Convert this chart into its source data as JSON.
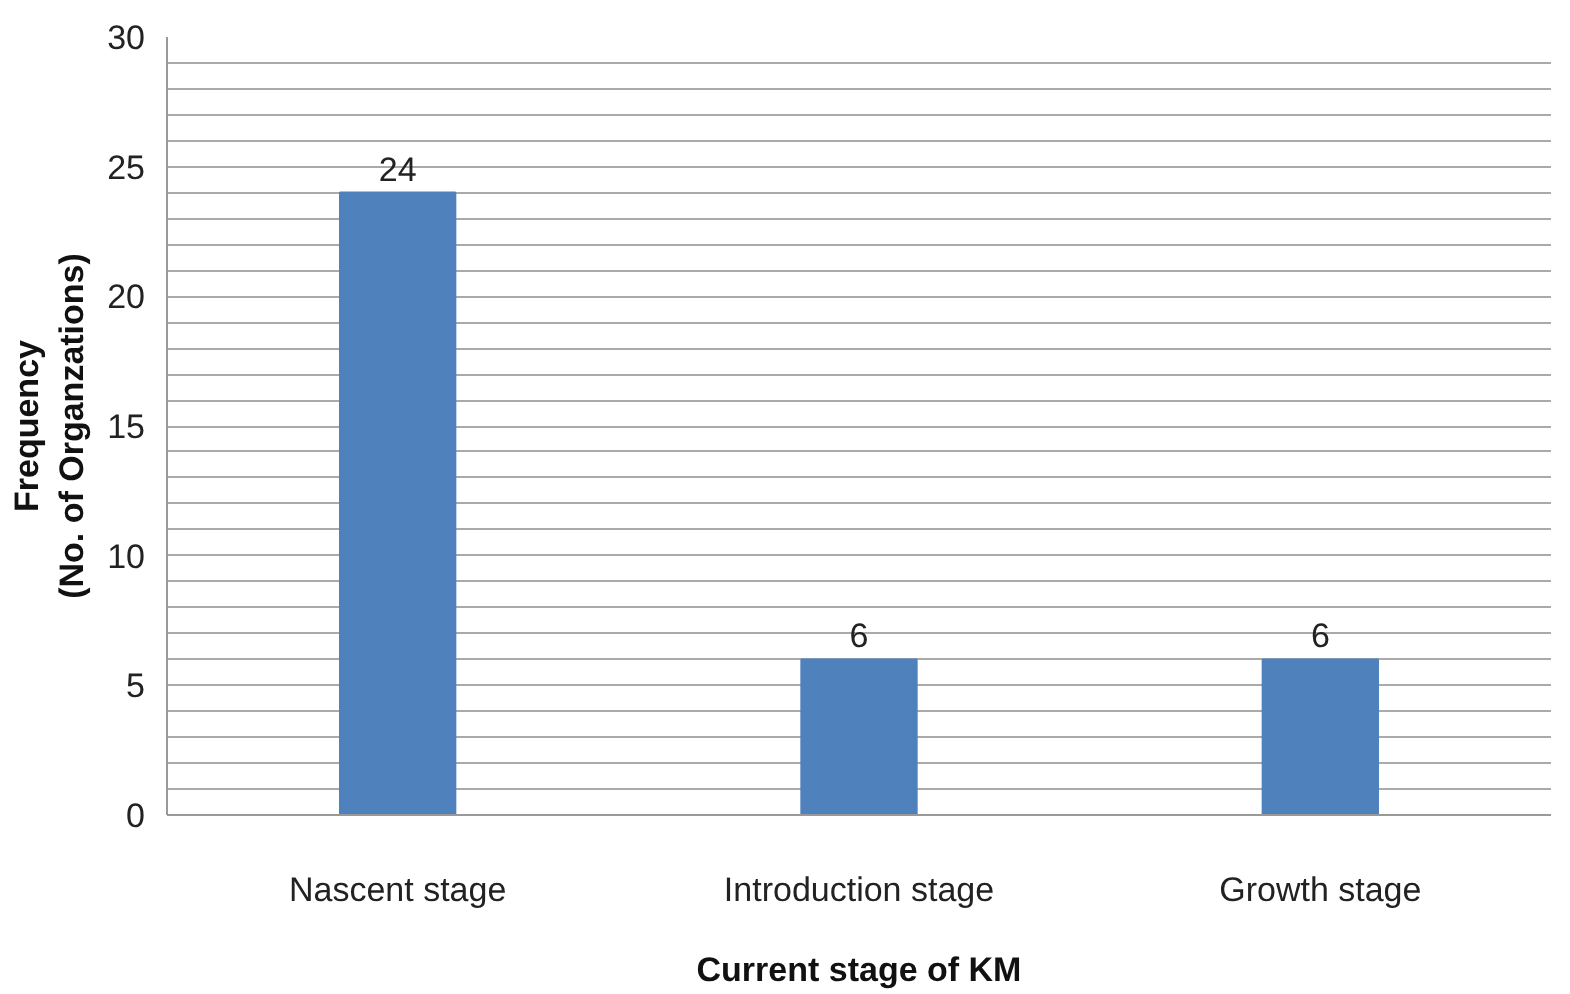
{
  "chart_data": {
    "type": "bar",
    "xlabel": "Current stage of KM",
    "ylabel": "Frequency\n(No. of Organzations)",
    "categories": [
      "Nascent stage",
      "Introduction stage",
      "Growth stage"
    ],
    "values": [
      24,
      6,
      6
    ],
    "color": "#4f81bd",
    "data_labels": true,
    "grid": "y",
    "ylim": [
      0,
      30
    ],
    "yticks": [
      0,
      {
        "value": 1,
        "label": null
      },
      {
        "value": 2,
        "label": null
      },
      {
        "value": 3,
        "label": null
      },
      {
        "value": 4,
        "label": null
      },
      5,
      {
        "value": 6,
        "label": null
      },
      {
        "value": 7,
        "label": null
      },
      {
        "value": 8,
        "label": null
      },
      {
        "value": 9,
        "label": null
      },
      10,
      {
        "value": 11,
        "label": null
      },
      {
        "value": 12,
        "label": null
      },
      {
        "value": 13,
        "label": null
      },
      {
        "value": 14,
        "label": null
      },
      15,
      {
        "value": 16,
        "label": null
      },
      {
        "value": 17,
        "label": null
      },
      {
        "value": 18,
        "label": null
      },
      {
        "value": 19,
        "label": null
      },
      20,
      {
        "value": 21,
        "label": null
      },
      {
        "value": 22,
        "label": null
      },
      {
        "value": 23,
        "label": null
      },
      {
        "value": 24,
        "label": null
      },
      25,
      {
        "value": 26,
        "label": null
      },
      {
        "value": 27,
        "label": null
      },
      {
        "value": 28,
        "label": null
      },
      {
        "value": 29,
        "label": null
      },
      30
    ]
  }
}
